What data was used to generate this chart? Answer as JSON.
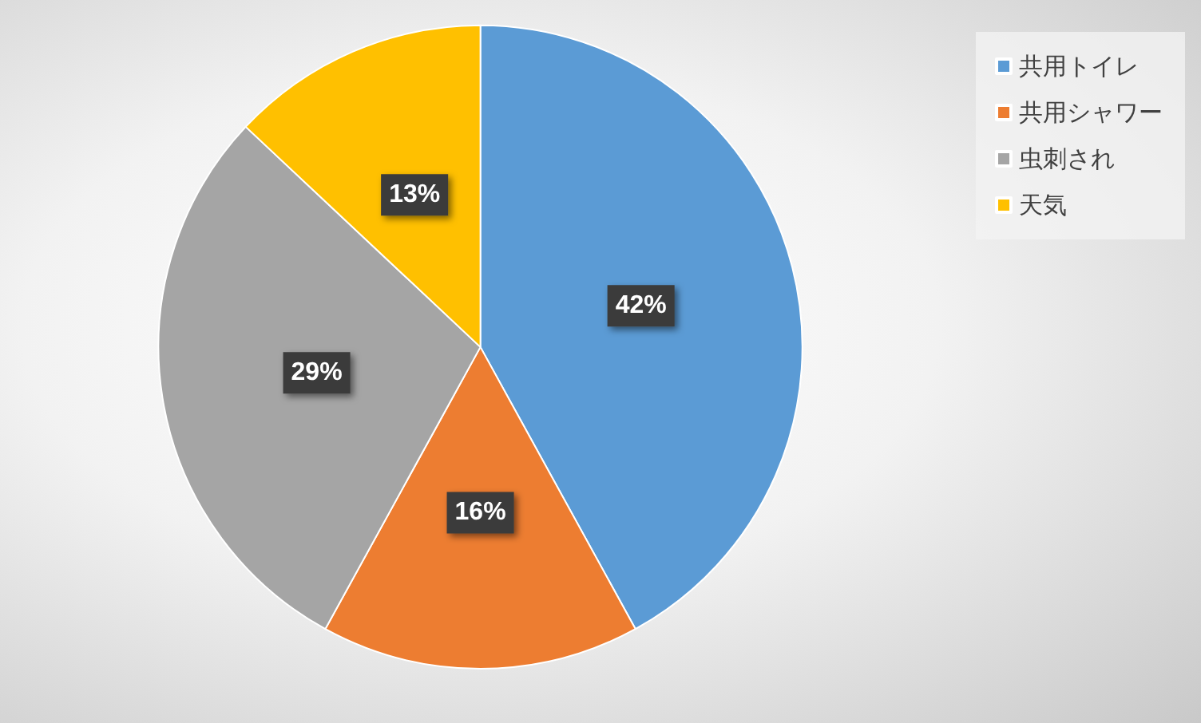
{
  "chart_data": {
    "type": "pie",
    "categories": [
      "共用トイレ",
      "共用シャワー",
      "虫刺され",
      "天気"
    ],
    "values": [
      42,
      16,
      29,
      13
    ],
    "value_labels": [
      "42%",
      "16%",
      "29%",
      "13%"
    ],
    "colors": [
      "#5b9bd5",
      "#ed7d31",
      "#a5a5a5",
      "#ffc000"
    ],
    "legend": "top right"
  }
}
